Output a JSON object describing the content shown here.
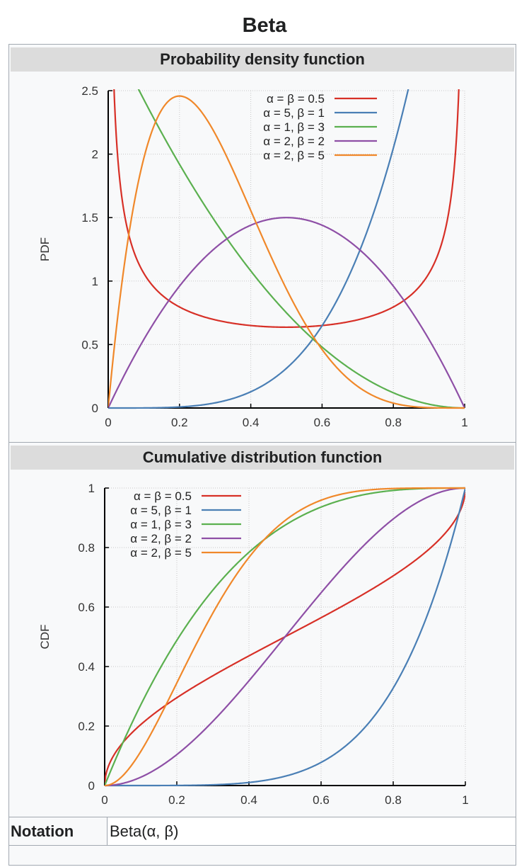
{
  "title": "Beta",
  "pdf_header": "Probability density function",
  "cdf_header": "Cumulative distribution function",
  "notation_label": "Notation",
  "notation_value": "Beta(α, β)",
  "colors": {
    "red": "#d73027",
    "blue": "#4a7fb5",
    "green": "#5bb04f",
    "purple": "#8e4fa6",
    "orange": "#f0882a"
  },
  "chart_data": [
    {
      "type": "line",
      "title": "Probability density function",
      "xlabel": "",
      "ylabel": "PDF",
      "xlim": [
        0,
        1
      ],
      "ylim": [
        0,
        2.5
      ],
      "x_ticks": [
        "0",
        "0.2",
        "0.4",
        "0.6",
        "0.8",
        "1"
      ],
      "y_ticks": [
        "0",
        "0.5",
        "1",
        "1.5",
        "2",
        "2.5"
      ],
      "grid": true,
      "legend_position": "top-right",
      "series": [
        {
          "name": "α = β = 0.5",
          "alpha": 0.5,
          "beta": 0.5,
          "color": "#d73027"
        },
        {
          "name": "α = 5, β = 1",
          "alpha": 5,
          "beta": 1,
          "color": "#4a7fb5"
        },
        {
          "name": "α = 1, β = 3",
          "alpha": 1,
          "beta": 3,
          "color": "#5bb04f"
        },
        {
          "name": "α = 2, β = 2",
          "alpha": 2,
          "beta": 2,
          "color": "#8e4fa6"
        },
        {
          "name": "α = 2, β = 5",
          "alpha": 2,
          "beta": 5,
          "color": "#f0882a"
        }
      ]
    },
    {
      "type": "line",
      "title": "Cumulative distribution function",
      "xlabel": "",
      "ylabel": "CDF",
      "xlim": [
        0,
        1
      ],
      "ylim": [
        0,
        1
      ],
      "x_ticks": [
        "0",
        "0.2",
        "0.4",
        "0.6",
        "0.8",
        "1"
      ],
      "y_ticks": [
        "0",
        "0.2",
        "0.4",
        "0.6",
        "0.8",
        "1"
      ],
      "grid": true,
      "legend_position": "top-left",
      "series": [
        {
          "name": "α = β = 0.5",
          "alpha": 0.5,
          "beta": 0.5,
          "color": "#d73027"
        },
        {
          "name": "α = 5, β = 1",
          "alpha": 5,
          "beta": 1,
          "color": "#4a7fb5"
        },
        {
          "name": "α = 1, β = 3",
          "alpha": 1,
          "beta": 3,
          "color": "#5bb04f"
        },
        {
          "name": "α = 2, β = 2",
          "alpha": 2,
          "beta": 2,
          "color": "#8e4fa6"
        },
        {
          "name": "α = 2, β = 5",
          "alpha": 2,
          "beta": 5,
          "color": "#f0882a"
        }
      ]
    }
  ]
}
